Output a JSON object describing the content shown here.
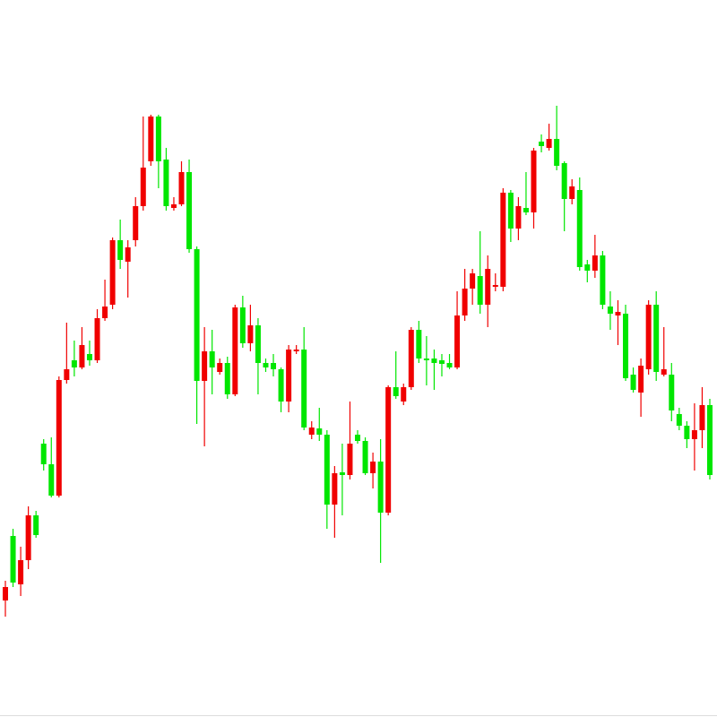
{
  "chart_data": {
    "type": "candlestick",
    "up_color": "#f00000",
    "down_color": "#00e600",
    "ylim": [
      0,
      800
    ],
    "open": [
      130,
      202,
      148,
      175,
      225,
      305,
      282,
      247,
      376,
      398,
      390,
      405,
      398,
      445,
      460,
      532,
      508,
      532,
      570,
      620,
      670,
      622,
      568,
      572,
      608,
      522,
      375,
      408,
      385,
      395,
      360,
      457,
      417,
      437,
      395,
      395,
      388,
      352,
      408,
      410,
      315,
      322,
      315,
      237,
      273,
      270,
      315,
      308,
      272,
      285,
      228,
      368,
      352,
      368,
      432,
      400,
      400,
      398,
      395,
      390,
      448,
      478,
      492,
      460,
      480,
      480,
      585,
      545,
      568,
      563,
      642,
      635,
      645,
      618,
      578,
      588,
      505,
      498,
      515,
      458,
      448,
      450,
      382,
      362,
      388,
      460,
      382,
      382,
      338,
      325,
      310,
      320,
      348
    ],
    "high": [
      152,
      210,
      190,
      235,
      230,
      310,
      312,
      380,
      440,
      420,
      435,
      420,
      455,
      488,
      535,
      555,
      532,
      580,
      670,
      672,
      672,
      635,
      580,
      620,
      622,
      525,
      435,
      432,
      400,
      402,
      460,
      470,
      460,
      445,
      400,
      405,
      390,
      415,
      415,
      435,
      330,
      345,
      320,
      280,
      305,
      352,
      320,
      312,
      295,
      310,
      370,
      408,
      372,
      435,
      442,
      425,
      410,
      405,
      405,
      475,
      500,
      500,
      542,
      515,
      495,
      590,
      588,
      580,
      608,
      635,
      650,
      662,
      682,
      620,
      600,
      602,
      510,
      538,
      520,
      475,
      465,
      460,
      390,
      400,
      465,
      475,
      435,
      395,
      345,
      330,
      350,
      368,
      355
    ],
    "low": [
      112,
      145,
      135,
      165,
      200,
      275,
      245,
      245,
      372,
      380,
      388,
      392,
      395,
      442,
      455,
      500,
      468,
      525,
      565,
      615,
      590,
      565,
      565,
      570,
      518,
      327,
      302,
      360,
      382,
      355,
      358,
      412,
      408,
      360,
      385,
      380,
      340,
      340,
      405,
      320,
      310,
      308,
      210,
      200,
      225,
      265,
      305,
      270,
      255,
      172,
      225,
      355,
      348,
      365,
      395,
      370,
      365,
      380,
      388,
      388,
      442,
      460,
      450,
      435,
      475,
      475,
      530,
      532,
      560,
      545,
      630,
      632,
      610,
      542,
      572,
      498,
      485,
      490,
      455,
      432,
      415,
      375,
      362,
      335,
      382,
      375,
      380,
      330,
      320,
      300,
      275,
      300,
      265
    ],
    "close": [
      145,
      150,
      175,
      225,
      203,
      282,
      247,
      376,
      388,
      390,
      415,
      398,
      445,
      458,
      532,
      510,
      524,
      570,
      613,
      670,
      620,
      570,
      572,
      608,
      522,
      375,
      408,
      390,
      395,
      360,
      457,
      417,
      437,
      395,
      390,
      388,
      352,
      410,
      410,
      323,
      323,
      315,
      237,
      272,
      270,
      305,
      308,
      272,
      285,
      228,
      368,
      358,
      368,
      432,
      400,
      398,
      395,
      394,
      390,
      448,
      478,
      495,
      460,
      500,
      482,
      585,
      545,
      570,
      563,
      632,
      637,
      645,
      615,
      578,
      592,
      502,
      498,
      515,
      460,
      450,
      452,
      378,
      365,
      392,
      460,
      385,
      388,
      342,
      325,
      310,
      320,
      348,
      270
    ]
  }
}
